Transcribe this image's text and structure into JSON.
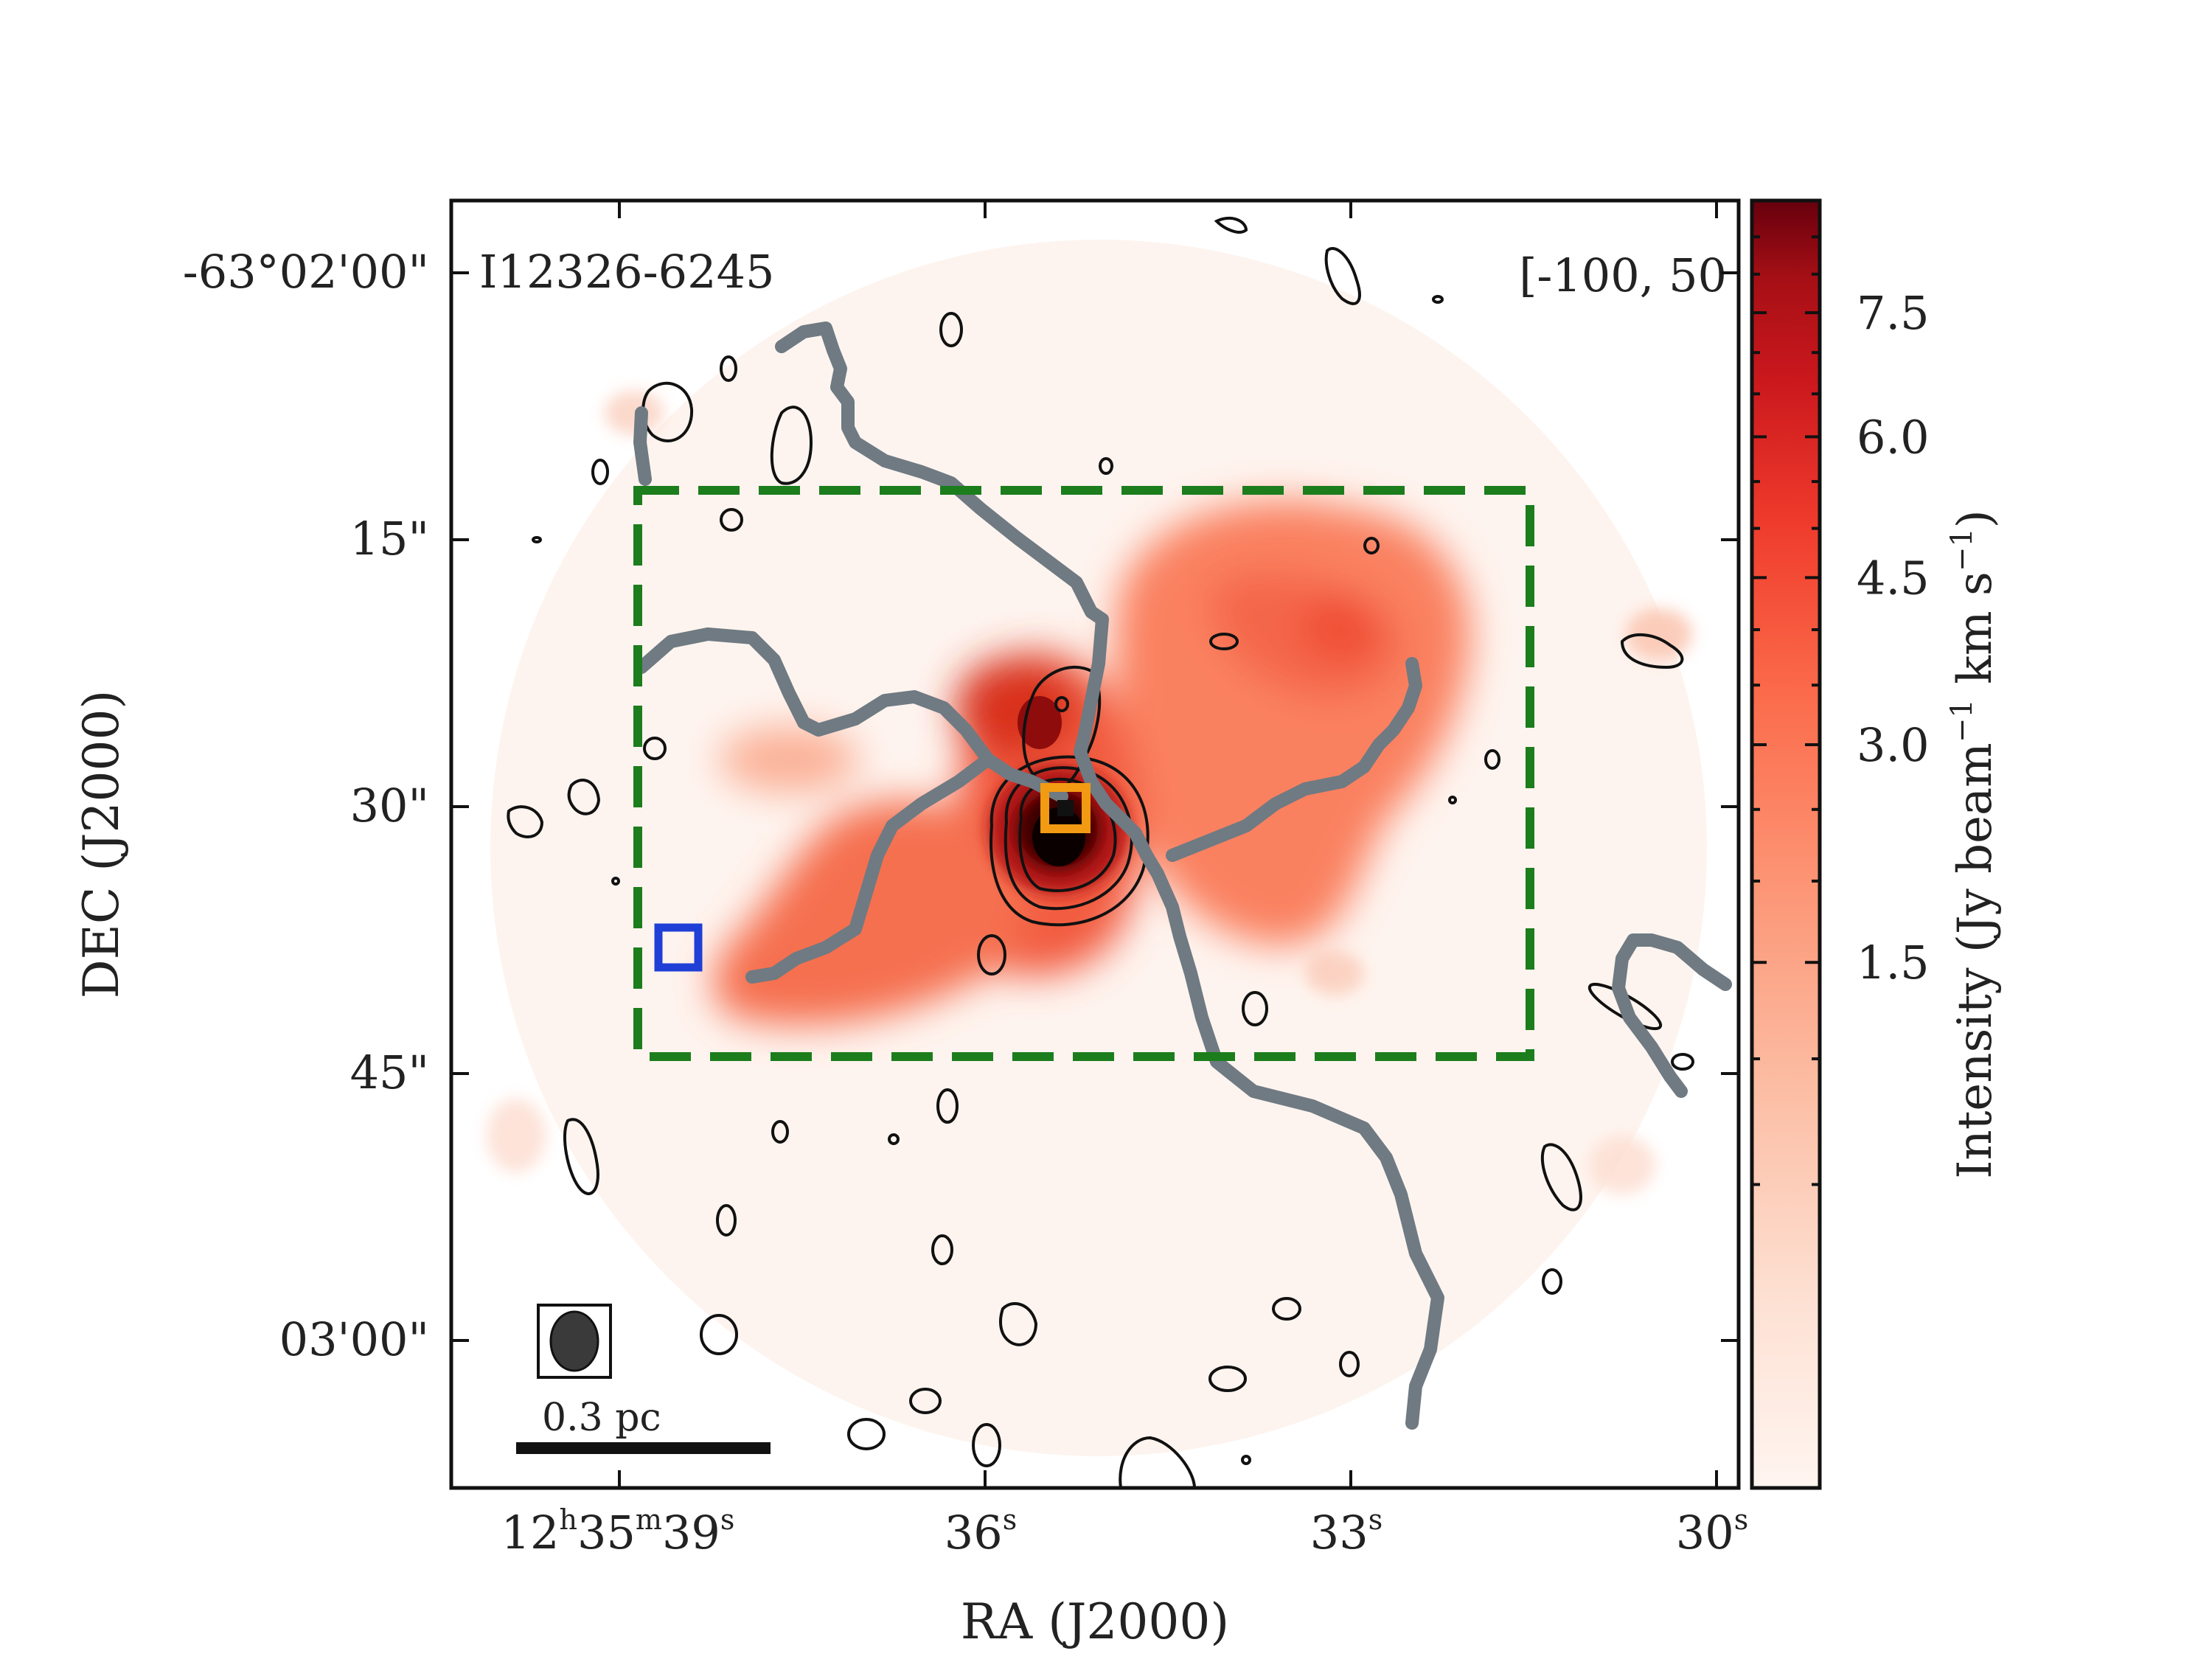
{
  "chart_data": {
    "type": "heatmap",
    "source_label": "I12326-6245",
    "velocity_label": "[-100, 50",
    "xlabel": "RA (J2000)",
    "ylabel": "DEC (J2000)",
    "x_ticks": [
      {
        "label_h": "12",
        "label_hs": "h",
        "label_m": "35",
        "label_ms": "m",
        "label_s": "39",
        "label_ss": "s"
      },
      {
        "label": "36",
        "sup": "s"
      },
      {
        "label": "33",
        "sup": "s"
      },
      {
        "label": "30",
        "sup": "s"
      }
    ],
    "y_ticks": [
      "-63°02'00\"",
      "15\"",
      "30\"",
      "45\"",
      "03'00\""
    ],
    "colorbar": {
      "label_main": "Intensity (Jy beam",
      "label_exp1": "−1",
      "label_mid": " km s",
      "label_exp2": "−1",
      "label_end": ")",
      "ticks": [
        "7.5",
        "6.0",
        "4.5",
        "3.0",
        "1.5"
      ],
      "tick_values": [
        7.5,
        6.0,
        4.5,
        3.0,
        1.5
      ],
      "vmax": 9.0,
      "stretch": "power 0.5",
      "colormap": [
        "#fff5f0",
        "#fcbba1",
        "#fc9272",
        "#fb6a4a",
        "#ef3b2c",
        "#cb181d",
        "#a50f15",
        "#67000d"
      ]
    },
    "scale_bar_label": "0.3 pc",
    "colors": {
      "filament": "#6f7a82",
      "box": "#1c7d1c",
      "marker_blue": "#1f3fd6",
      "marker_orange": "#f29a12",
      "contour": "#111111"
    }
  }
}
